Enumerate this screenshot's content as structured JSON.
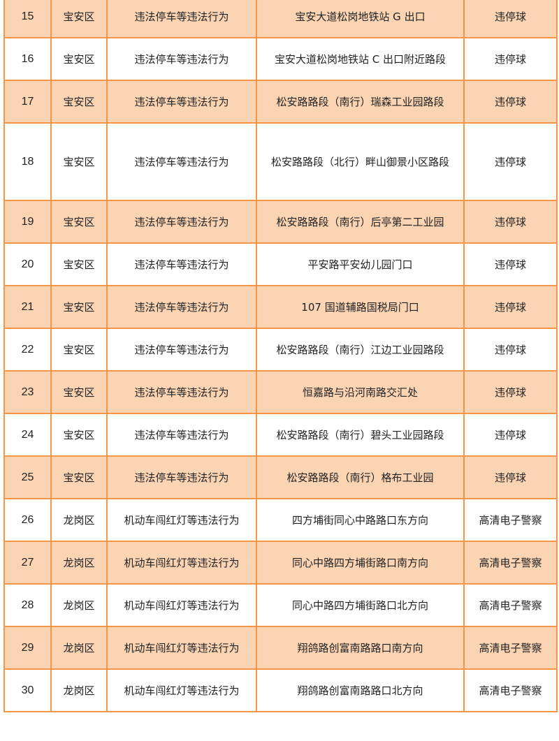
{
  "colors": {
    "border": "#f79646",
    "alt_row": "#fbd4b4"
  },
  "rows": [
    {
      "no": "15",
      "district": "宝安区",
      "violation": "违法停车等违法行为",
      "location": "宝安大道松岗地铁站 G 出口",
      "device": "违停球"
    },
    {
      "no": "16",
      "district": "宝安区",
      "violation": "违法停车等违法行为",
      "location": "宝安大道松岗地铁站 C 出口附近路段",
      "device": "违停球"
    },
    {
      "no": "17",
      "district": "宝安区",
      "violation": "违法停车等违法行为",
      "location": "松安路路段（南行）瑞森工业园路段",
      "device": "违停球"
    },
    {
      "no": "18",
      "district": "宝安区",
      "violation": "违法停车等违法行为",
      "location": "松安路路段（北行）畔山御景小区路段",
      "device": "违停球"
    },
    {
      "no": "19",
      "district": "宝安区",
      "violation": "违法停车等违法行为",
      "location": "松安路路段（南行）后亭第二工业园",
      "device": "违停球"
    },
    {
      "no": "20",
      "district": "宝安区",
      "violation": "违法停车等违法行为",
      "location": "平安路平安幼儿园门口",
      "device": "违停球"
    },
    {
      "no": "21",
      "district": "宝安区",
      "violation": "违法停车等违法行为",
      "location": "107 国道辅路国税局门口",
      "device": "违停球"
    },
    {
      "no": "22",
      "district": "宝安区",
      "violation": "违法停车等违法行为",
      "location": "松安路路段（南行）江边工业园路段",
      "device": "违停球"
    },
    {
      "no": "23",
      "district": "宝安区",
      "violation": "违法停车等违法行为",
      "location": "恒嘉路与沿河南路交汇处",
      "device": "违停球"
    },
    {
      "no": "24",
      "district": "宝安区",
      "violation": "违法停车等违法行为",
      "location": "松安路路段（南行）碧头工业园路段",
      "device": "违停球"
    },
    {
      "no": "25",
      "district": "宝安区",
      "violation": "违法停车等违法行为",
      "location": "松安路路段（南行）格布工业园",
      "device": "违停球"
    },
    {
      "no": "26",
      "district": "龙岗区",
      "violation": "机动车闯红灯等违法行为",
      "location": "四方埔街同心中路路口东方向",
      "device": "高清电子警察"
    },
    {
      "no": "27",
      "district": "龙岗区",
      "violation": "机动车闯红灯等违法行为",
      "location": "同心中路四方埔街路口南方向",
      "device": "高清电子警察"
    },
    {
      "no": "28",
      "district": "龙岗区",
      "violation": "机动车闯红灯等违法行为",
      "location": "同心中路四方埔街路口北方向",
      "device": "高清电子警察"
    },
    {
      "no": "29",
      "district": "龙岗区",
      "violation": "机动车闯红灯等违法行为",
      "location": "翔鸽路创富南路路口南方向",
      "device": "高清电子警察"
    },
    {
      "no": "30",
      "district": "龙岗区",
      "violation": "机动车闯红灯等违法行为",
      "location": "翔鸽路创富南路路口北方向",
      "device": "高清电子警察"
    }
  ]
}
